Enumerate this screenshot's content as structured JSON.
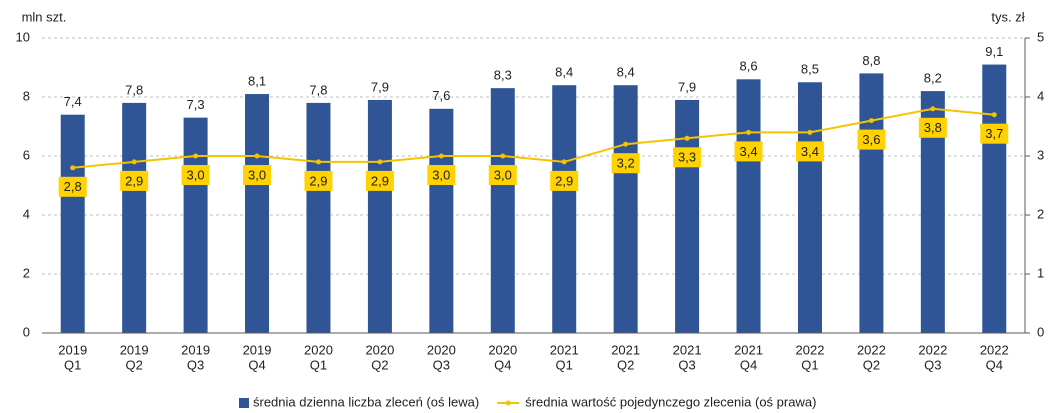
{
  "chart_data": {
    "type": "combo",
    "y_label": "mln szt.",
    "y2_label": "tys. zł",
    "categories": [
      [
        "2019",
        "Q1"
      ],
      [
        "2019",
        "Q2"
      ],
      [
        "2019",
        "Q3"
      ],
      [
        "2019",
        "Q4"
      ],
      [
        "2020",
        "Q1"
      ],
      [
        "2020",
        "Q2"
      ],
      [
        "2020",
        "Q3"
      ],
      [
        "2020",
        "Q4"
      ],
      [
        "2021",
        "Q1"
      ],
      [
        "2021",
        "Q2"
      ],
      [
        "2021",
        "Q3"
      ],
      [
        "2021",
        "Q4"
      ],
      [
        "2022",
        "Q1"
      ],
      [
        "2022",
        "Q2"
      ],
      [
        "2022",
        "Q3"
      ],
      [
        "2022",
        "Q4"
      ]
    ],
    "series": [
      {
        "name": "średnia dzienna liczba zleceń (oś lewa)",
        "type": "bar",
        "color": "#2f5597",
        "values": [
          7.4,
          7.8,
          7.3,
          8.1,
          7.8,
          7.9,
          7.6,
          8.3,
          8.4,
          8.4,
          7.9,
          8.6,
          8.5,
          8.8,
          8.2,
          9.1
        ],
        "value_labels": [
          "7,4",
          "7,8",
          "7,3",
          "8,1",
          "7,8",
          "7,9",
          "7,6",
          "8,3",
          "8,4",
          "8,4",
          "7,9",
          "8,6",
          "8,5",
          "8,8",
          "8,2",
          "9,1"
        ]
      },
      {
        "name": "średnia wartość pojedynczego zlecenia (oś prawa)",
        "type": "line",
        "axis": "y2",
        "color": "#f5c400",
        "values": [
          2.8,
          2.9,
          3.0,
          3.0,
          2.9,
          2.9,
          3.0,
          3.0,
          2.9,
          3.2,
          3.3,
          3.4,
          3.4,
          3.6,
          3.8,
          3.7
        ],
        "value_labels": [
          "2,8",
          "2,9",
          "3,0",
          "3,0",
          "2,9",
          "2,9",
          "3,0",
          "3,0",
          "2,9",
          "3,2",
          "3,3",
          "3,4",
          "3,4",
          "3,6",
          "3,8",
          "3,7"
        ]
      }
    ],
    "ylim": [
      0,
      10
    ],
    "yticks": [
      0,
      2,
      4,
      6,
      8,
      10
    ],
    "y2lim": [
      0,
      5
    ],
    "y2ticks": [
      0,
      1,
      2,
      3,
      4,
      5
    ],
    "grid": true,
    "legend": "bottom"
  }
}
